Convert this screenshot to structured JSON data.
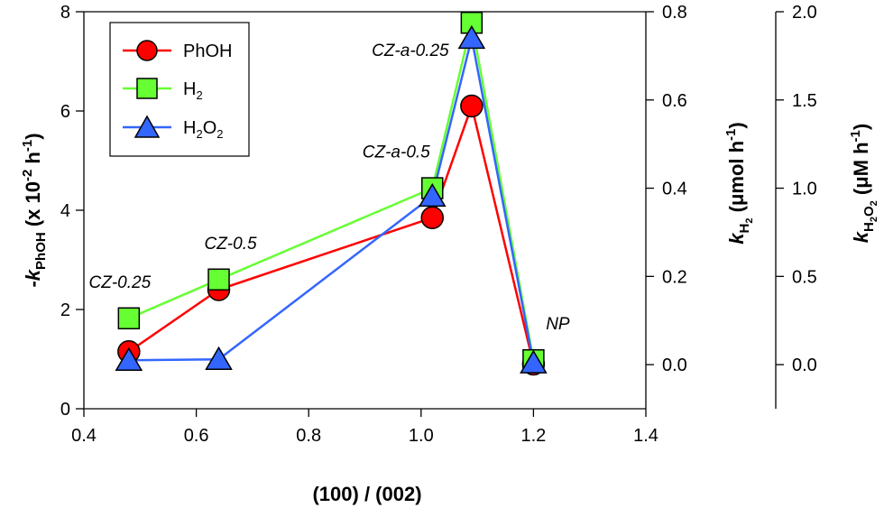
{
  "chart_data": {
    "type": "line",
    "x": [
      0.48,
      0.64,
      1.02,
      1.09,
      1.2
    ],
    "xlabel": "(100) / (002)",
    "xlim": [
      0.4,
      1.4
    ],
    "xticks": [
      "0.4",
      "0.6",
      "0.8",
      "1.0",
      "1.2",
      "1.4"
    ],
    "ylabel_left": "-k_PhOH (x 10^-2 h^-1)",
    "ylabel_left_parts": {
      "sign": "-",
      "k": "k",
      "sub": "PhOH",
      "main": " (x 10",
      "exp": "-2",
      "unit": " h",
      "unit_exp": "-1",
      "close": ")"
    },
    "ylim_left": [
      0,
      8
    ],
    "yticks_left": [
      "0",
      "2",
      "4",
      "6",
      "8"
    ],
    "ylabel_right1": "k_H2 (μmol h^-1)",
    "ylabel_right1_parts": {
      "k": "k",
      "sub": "H",
      "sub2": "2",
      "main": " (μmol h",
      "exp": "-1",
      "close": ")"
    },
    "ylim_right1": [
      -0.1,
      0.8
    ],
    "yticks_right1": [
      "0.0",
      "0.2",
      "0.4",
      "0.6",
      "0.8"
    ],
    "ylabel_right2": "k_H2O2 (μM h^-1)",
    "ylabel_right2_parts": {
      "k": "k",
      "sub": "H",
      "sub2": "2",
      "sub3": "O",
      "sub4": "2",
      "main": " (μM h",
      "exp": "-1",
      "close": ")"
    },
    "ylim_right2": [
      -0.25,
      2.0
    ],
    "yticks_right2": [
      "0.0",
      "0.5",
      "1.0",
      "1.5",
      "2.0"
    ],
    "series": [
      {
        "name": "PhOH",
        "axis": "left",
        "color": "#ff0000",
        "marker": "circle",
        "values": [
          1.15,
          2.4,
          3.85,
          6.1,
          0.9
        ]
      },
      {
        "name": "H2",
        "legend": {
          "base": "H",
          "sub": "2"
        },
        "axis": "right1",
        "color": "#66ff33",
        "marker": "square",
        "values": [
          0.105,
          0.193,
          0.4,
          0.775,
          0.01
        ]
      },
      {
        "name": "H2O2",
        "legend": {
          "base": "H",
          "sub": "2",
          "mid": "O",
          "sub2": "2"
        },
        "axis": "right2",
        "color": "#3366ff",
        "marker": "triangle",
        "values": [
          0.025,
          0.03,
          0.955,
          1.85,
          0.01
        ]
      }
    ],
    "annotations": [
      {
        "text": "CZ-0.25",
        "x": 0.48
      },
      {
        "text": "CZ-0.5",
        "x": 0.64
      },
      {
        "text": "CZ-a-0.5",
        "x": 1.02
      },
      {
        "text": "CZ-a-0.25",
        "x": 1.09
      },
      {
        "text": "NP",
        "x": 1.2
      }
    ],
    "legend_position": "top-left",
    "grid": false
  }
}
